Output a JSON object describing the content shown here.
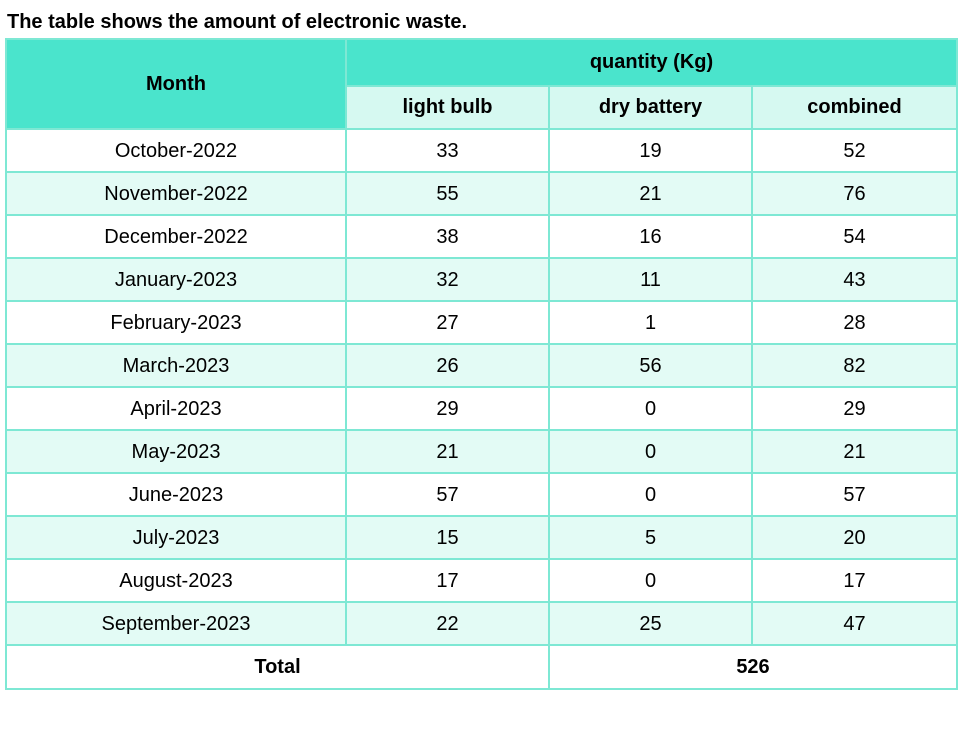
{
  "caption": "The table shows the amount of electronic waste.",
  "chart_data": {
    "type": "table",
    "title": "The table shows the amount of electronic waste.",
    "row_header": "Month",
    "group_header": "quantity (Kg)",
    "columns": [
      "light bulb",
      "dry battery",
      "combined"
    ],
    "rows": [
      {
        "month": "October-2022",
        "light_bulb": "33",
        "dry_battery": "19",
        "combined": "52"
      },
      {
        "month": "November-2022",
        "light_bulb": "55",
        "dry_battery": "21",
        "combined": "76"
      },
      {
        "month": "December-2022",
        "light_bulb": "38",
        "dry_battery": "16",
        "combined": "54"
      },
      {
        "month": "January-2023",
        "light_bulb": "32",
        "dry_battery": "11",
        "combined": "43"
      },
      {
        "month": "February-2023",
        "light_bulb": "27",
        "dry_battery": "1",
        "combined": "28"
      },
      {
        "month": "March-2023",
        "light_bulb": "26",
        "dry_battery": "56",
        "combined": "82"
      },
      {
        "month": "April-2023",
        "light_bulb": "29",
        "dry_battery": "0",
        "combined": "29"
      },
      {
        "month": "May-2023",
        "light_bulb": "21",
        "dry_battery": "0",
        "combined": "21"
      },
      {
        "month": "June-2023",
        "light_bulb": "57",
        "dry_battery": "0",
        "combined": "57"
      },
      {
        "month": "July-2023",
        "light_bulb": "15",
        "dry_battery": "5",
        "combined": "20"
      },
      {
        "month": "August-2023",
        "light_bulb": "17",
        "dry_battery": "0",
        "combined": "17"
      },
      {
        "month": "September-2023",
        "light_bulb": "22",
        "dry_battery": "25",
        "combined": "47"
      }
    ],
    "total": {
      "label": "Total",
      "value": "526"
    }
  },
  "colors": {
    "header_main": "#4ae4cc",
    "header_sub": "#d6f9f1",
    "row_tint": "#e3fbf5",
    "border": "#7ee8d4"
  }
}
